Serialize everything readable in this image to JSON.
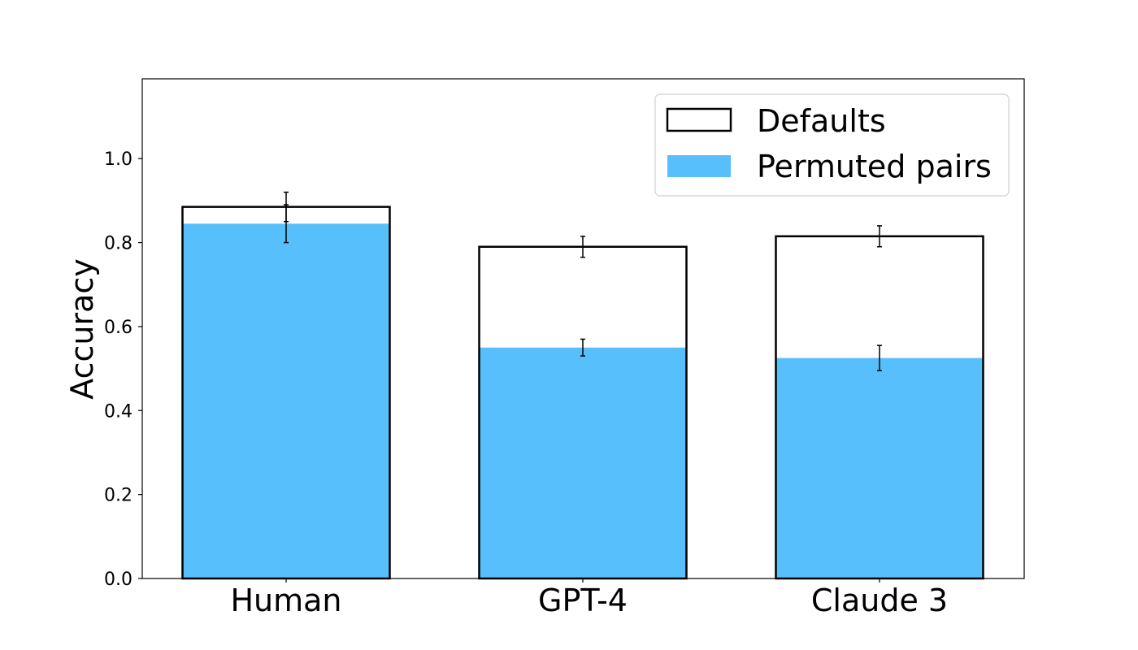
{
  "chart_data": {
    "type": "bar",
    "categories": [
      "Human",
      "GPT-4",
      "Claude 3"
    ],
    "series": [
      {
        "name": "Defaults",
        "style": "outline",
        "values": [
          0.885,
          0.79,
          0.815
        ],
        "errors": [
          0.035,
          0.025,
          0.025
        ]
      },
      {
        "name": "Permuted pairs",
        "style": "filled",
        "color": "#56bffc",
        "values": [
          0.845,
          0.55,
          0.525
        ],
        "errors": [
          0.045,
          0.02,
          0.03
        ]
      }
    ],
    "title": "",
    "xlabel": "",
    "ylabel": "Accuracy",
    "ylim": [
      0,
      1.19
    ],
    "yticks": [
      0.0,
      0.2,
      0.4,
      0.6,
      0.8,
      1.0
    ],
    "ytick_labels": [
      "0.0",
      "0.2",
      "0.4",
      "0.6",
      "0.8",
      "1.0"
    ],
    "grid": false,
    "legend_position": "top-right"
  },
  "colors": {
    "fill": "#56bffc",
    "outline": "#000000"
  }
}
